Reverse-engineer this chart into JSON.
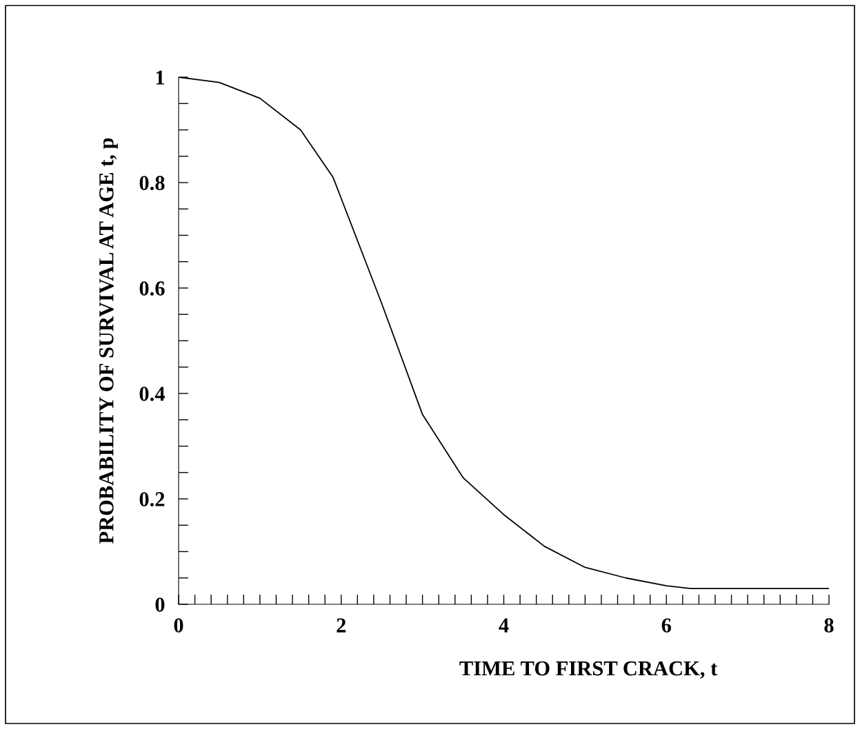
{
  "chart_data": {
    "type": "line",
    "xlabel": "TIME TO FIRST CRACK, t",
    "ylabel": "PROBABILITY OF SURVIVAL AT AGE t, p",
    "x": [
      0,
      0.5,
      1,
      1.5,
      1.9,
      2,
      2.5,
      3,
      3.5,
      4,
      4.5,
      5,
      5.5,
      6,
      6.3,
      7,
      8
    ],
    "series": [
      {
        "color": "#000000",
        "values": [
          1,
          0.99,
          0.96,
          0.9,
          0.81,
          0.77,
          0.57,
          0.36,
          0.24,
          0.17,
          0.11,
          0.07,
          0.05,
          0.035,
          0.03,
          0.03,
          0.03
        ]
      }
    ],
    "xlim": [
      0,
      8
    ],
    "ylim": [
      0,
      1
    ],
    "xticks": [
      0,
      {
        "value": 0.2,
        "label": null
      },
      {
        "value": 0.4,
        "label": null
      },
      {
        "value": 0.6,
        "label": null
      },
      {
        "value": 0.8,
        "label": null
      },
      {
        "value": 1,
        "label": null
      },
      {
        "value": 1.2,
        "label": null
      },
      {
        "value": 1.4,
        "label": null
      },
      {
        "value": 1.6,
        "label": null
      },
      {
        "value": 1.8,
        "label": null
      },
      2,
      {
        "value": 2.2,
        "label": null
      },
      {
        "value": 2.4,
        "label": null
      },
      {
        "value": 2.6,
        "label": null
      },
      {
        "value": 2.8,
        "label": null
      },
      {
        "value": 3,
        "label": null
      },
      {
        "value": 3.2,
        "label": null
      },
      {
        "value": 3.4,
        "label": null
      },
      {
        "value": 3.6,
        "label": null
      },
      {
        "value": 3.8,
        "label": null
      },
      4,
      {
        "value": 4.2,
        "label": null
      },
      {
        "value": 4.4,
        "label": null
      },
      {
        "value": 4.6,
        "label": null
      },
      {
        "value": 4.8,
        "label": null
      },
      {
        "value": 5,
        "label": null
      },
      {
        "value": 5.2,
        "label": null
      },
      {
        "value": 5.4,
        "label": null
      },
      {
        "value": 5.6,
        "label": null
      },
      {
        "value": 5.8,
        "label": null
      },
      6,
      {
        "value": 6.2,
        "label": null
      },
      {
        "value": 6.4,
        "label": null
      },
      {
        "value": 6.6,
        "label": null
      },
      {
        "value": 6.8,
        "label": null
      },
      {
        "value": 7,
        "label": null
      },
      {
        "value": 7.2,
        "label": null
      },
      {
        "value": 7.4,
        "label": null
      },
      {
        "value": 7.6,
        "label": null
      },
      {
        "value": 7.8,
        "label": null
      },
      8
    ],
    "yticks": [
      0,
      {
        "value": 0.05,
        "label": null
      },
      {
        "value": 0.1,
        "label": null
      },
      {
        "value": 0.15,
        "label": null
      },
      0.2,
      {
        "value": 0.25,
        "label": null
      },
      {
        "value": 0.3,
        "label": null
      },
      {
        "value": 0.35,
        "label": null
      },
      0.4,
      {
        "value": 0.45,
        "label": null
      },
      {
        "value": 0.5,
        "label": null
      },
      {
        "value": 0.55,
        "label": null
      },
      0.6,
      {
        "value": 0.65,
        "label": null
      },
      {
        "value": 0.7,
        "label": null
      },
      {
        "value": 0.75,
        "label": null
      },
      0.8,
      {
        "value": 0.85,
        "label": null
      },
      {
        "value": 0.9,
        "label": null
      },
      {
        "value": 0.95,
        "label": null
      },
      1
    ],
    "grid": false,
    "legend": false,
    "marker": "none",
    "line_style": "solid"
  }
}
